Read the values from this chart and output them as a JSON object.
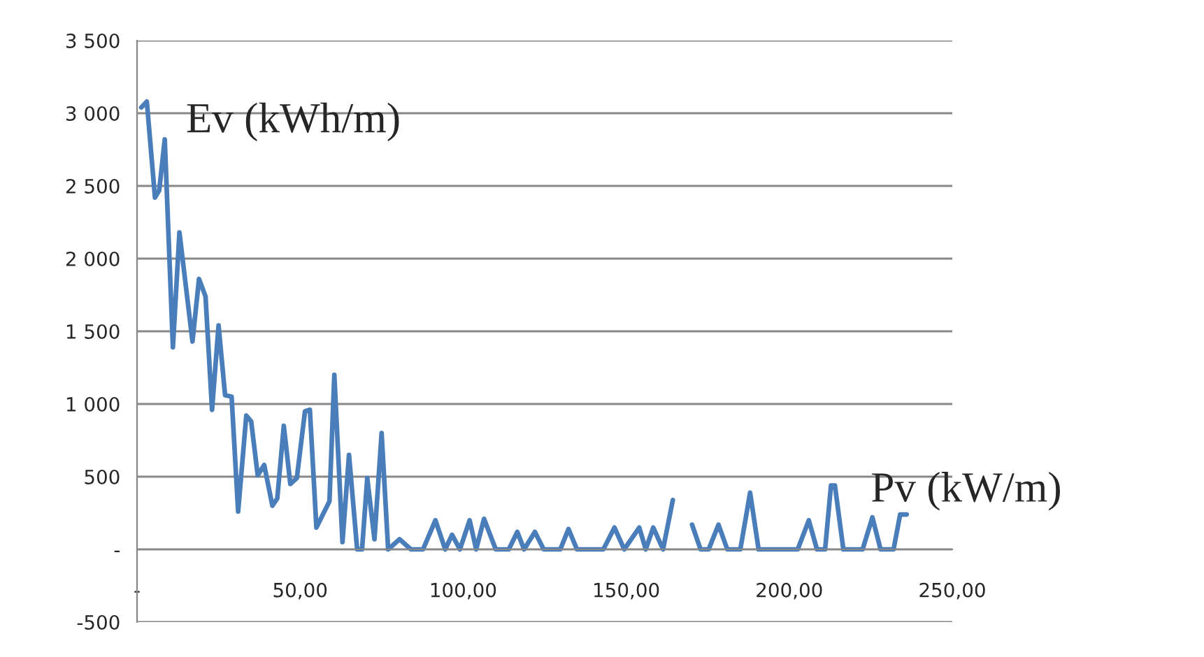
{
  "chart_data": {
    "type": "line",
    "ylabel": "Ev (kWh/m)",
    "xlabel": "Pv (kW/m)",
    "x": [
      1.3,
      3,
      5.5,
      6.8,
      8.5,
      11,
      13,
      17,
      19,
      21,
      23,
      25,
      27,
      29,
      31,
      33.5,
      35,
      37,
      39,
      41.5,
      43,
      45,
      47,
      49,
      51.5,
      53,
      55,
      59,
      60.5,
      63,
      65,
      67.5,
      69,
      70.6,
      72.8,
      75,
      77,
      80.5,
      84,
      87.7,
      91.5,
      94.5,
      96.6,
      99,
      102,
      104,
      106.4,
      110,
      114,
      116.6,
      118.7,
      122,
      124.7,
      129.8,
      132.3,
      134.9,
      143,
      146.4,
      149.4,
      154,
      156,
      158.3,
      161.3,
      164.3,
      167,
      170.2,
      172.8,
      175.3,
      178.3,
      181,
      185,
      188,
      190.6,
      202.6,
      206,
      208.5,
      211,
      212.8,
      214,
      216.6,
      222.5,
      225.5,
      228,
      232,
      234,
      236
    ],
    "series": [
      {
        "color": "#4a7ebb",
        "values": [
          3040,
          3080,
          2420,
          2470,
          2820,
          1390,
          2180,
          1430,
          1860,
          1740,
          960,
          1540,
          1060,
          1050,
          260,
          920,
          880,
          510,
          580,
          300,
          350,
          850,
          450,
          490,
          950,
          960,
          150,
          330,
          1200,
          50,
          650,
          0,
          0,
          490,
          70,
          800,
          0,
          70,
          0,
          0,
          200,
          0,
          100,
          0,
          200,
          0,
          210,
          0,
          0,
          120,
          0,
          120,
          0,
          0,
          140,
          0,
          0,
          150,
          0,
          150,
          0,
          150,
          0,
          340,
          null,
          170,
          0,
          0,
          170,
          0,
          0,
          390,
          0,
          0,
          200,
          0,
          0,
          440,
          440,
          0,
          0,
          220,
          0,
          0,
          240,
          240
        ]
      }
    ],
    "xlim": [
      0,
      250
    ],
    "ylim": [
      -500,
      3500
    ],
    "xticks": [
      {
        "value": 0,
        "label": "-"
      },
      {
        "value": 50,
        "label": "50,00"
      },
      {
        "value": 100,
        "label": "100,00"
      },
      {
        "value": 150,
        "label": "150,00"
      },
      {
        "value": 200,
        "label": "200,00"
      },
      {
        "value": 250,
        "label": "250,00"
      }
    ],
    "yticks": [
      {
        "value": -500,
        "label": "-500"
      },
      {
        "value": 0,
        "label": "-"
      },
      500,
      {
        "value": 1000,
        "label": "1 000"
      },
      {
        "value": 1500,
        "label": "1 500"
      },
      {
        "value": 2000,
        "label": "2 000"
      },
      {
        "value": 2500,
        "label": "2 500"
      },
      {
        "value": 3000,
        "label": "3 000"
      },
      {
        "value": 3500,
        "label": "3 500"
      }
    ],
    "grid": "y",
    "marker": "none",
    "line_style": "solid"
  }
}
